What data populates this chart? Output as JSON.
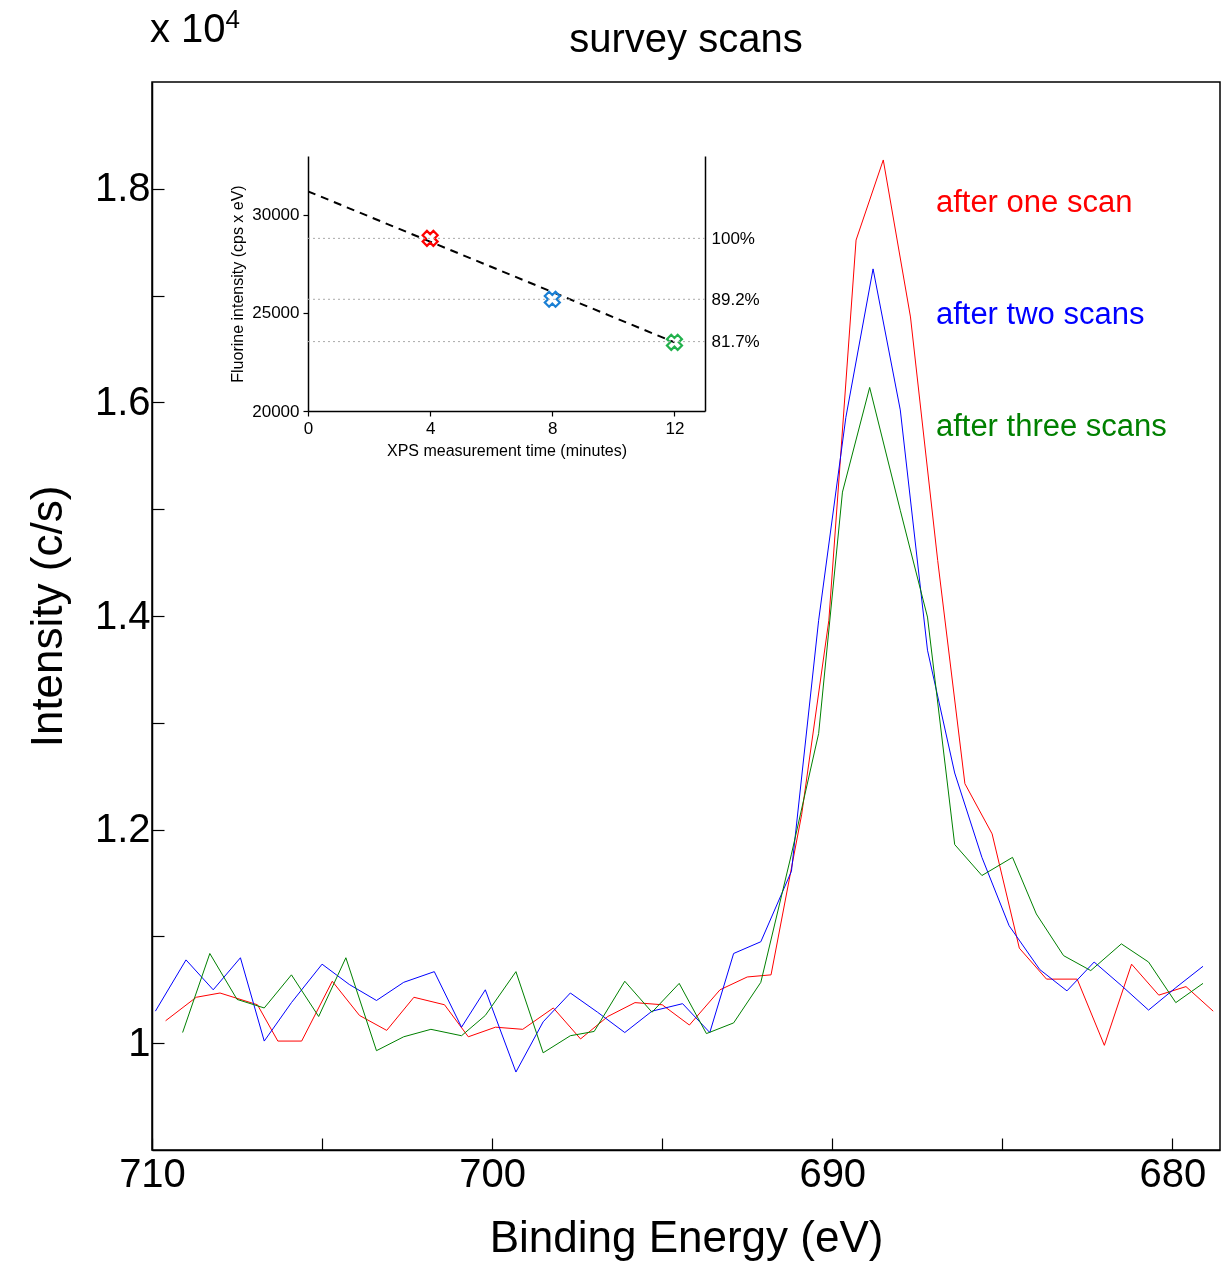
{
  "chart_data": [
    {
      "type": "line",
      "title": "survey scans",
      "xlabel": "Binding Energy (eV)",
      "ylabel": "Intensity (c/s)",
      "annotations": [
        "x 10$^{4}$"
      ],
      "legend": "top right",
      "xlim": [
        710,
        678.6
      ],
      "xticks": [
        710,
        {
          "value": 705,
          "label": null
        },
        700,
        {
          "value": 695,
          "label": null
        },
        690,
        {
          "value": 685,
          "label": null
        },
        680
      ],
      "ylim": [
        0.9,
        1.9
      ],
      "yticks": [
        1,
        {
          "value": 1.1,
          "label": null
        },
        1.2,
        {
          "value": 1.3,
          "label": null
        },
        1.4,
        {
          "value": 1.5,
          "label": null
        },
        1.6,
        {
          "value": 1.7,
          "label": null
        },
        1.8
      ],
      "series": [
        {
          "name": "after one scan",
          "color": "#ff0000",
          "x": [
            709.6,
            708.7,
            708.0,
            706.9,
            706.3,
            705.6,
            704.7,
            703.9,
            703.1,
            702.3,
            701.4,
            700.7,
            699.9,
            699.1,
            698.2,
            697.4,
            696.6,
            695.8,
            695.0,
            694.2,
            693.3,
            692.5,
            691.8,
            690.9,
            690.1,
            689.3,
            688.5,
            687.7,
            686.9,
            686.1,
            685.3,
            684.5,
            683.7,
            682.8,
            682.0,
            681.2,
            680.4,
            679.6,
            678.8
          ],
          "values": [
            1.021,
            1.043,
            1.047,
            1.036,
            1.002,
            1.002,
            1.058,
            1.026,
            1.012,
            1.043,
            1.036,
            1.006,
            1.015,
            1.013,
            1.033,
            1.004,
            1.025,
            1.038,
            1.036,
            1.017,
            1.05,
            1.062,
            1.064,
            1.214,
            1.396,
            1.752,
            1.827,
            1.68,
            1.452,
            1.243,
            1.196,
            1.089,
            1.06,
            1.06,
            0.998,
            1.074,
            1.045,
            1.053,
            1.03
          ]
        },
        {
          "name": "after two scans",
          "color": "#0000ff",
          "x": [
            709.9,
            709.0,
            708.2,
            707.4,
            706.7,
            705.9,
            705.0,
            704.2,
            703.4,
            702.6,
            701.7,
            700.9,
            700.2,
            699.3,
            698.5,
            697.7,
            696.9,
            696.1,
            695.3,
            694.4,
            693.6,
            692.9,
            692.1,
            691.2,
            690.4,
            689.6,
            688.8,
            688.0,
            687.2,
            686.4,
            685.6,
            684.8,
            683.9,
            683.1,
            682.3,
            681.5,
            680.7,
            679.9,
            679.1
          ],
          "values": [
            1.03,
            1.078,
            1.05,
            1.08,
            1.002,
            1.038,
            1.074,
            1.055,
            1.04,
            1.057,
            1.067,
            1.015,
            1.05,
            0.973,
            1.02,
            1.047,
            1.029,
            1.01,
            1.03,
            1.037,
            1.01,
            1.084,
            1.095,
            1.161,
            1.396,
            1.586,
            1.725,
            1.593,
            1.368,
            1.253,
            1.174,
            1.11,
            1.069,
            1.049,
            1.076,
            1.054,
            1.031,
            1.052,
            1.072
          ]
        },
        {
          "name": "after three scans",
          "color": "#008000",
          "x": [
            709.1,
            708.3,
            707.5,
            706.7,
            705.9,
            705.1,
            704.3,
            703.4,
            702.6,
            701.8,
            700.9,
            700.2,
            699.3,
            698.5,
            697.7,
            697.0,
            696.1,
            695.3,
            694.5,
            693.7,
            692.9,
            692.1,
            691.2,
            690.4,
            689.7,
            688.9,
            688.0,
            687.2,
            686.4,
            685.6,
            684.7,
            684.0,
            683.2,
            682.4,
            681.5,
            680.7,
            679.9,
            679.1
          ],
          "values": [
            1.01,
            1.084,
            1.041,
            1.033,
            1.064,
            1.025,
            1.08,
            0.993,
            1.006,
            1.013,
            1.007,
            1.026,
            1.067,
            0.991,
            1.007,
            1.011,
            1.058,
            1.029,
            1.056,
            1.009,
            1.019,
            1.057,
            1.177,
            1.29,
            1.516,
            1.614,
            1.499,
            1.399,
            1.186,
            1.157,
            1.174,
            1.121,
            1.082,
            1.068,
            1.093,
            1.076,
            1.038,
            1.056
          ]
        }
      ]
    },
    {
      "type": "scatter",
      "xlabel": "XPS measurement time (minutes)",
      "ylabel": "Fluorine intensity (cps x eV)",
      "xlim": [
        0,
        13
      ],
      "xticks": [
        0,
        4,
        8,
        12
      ],
      "ylim": [
        20000,
        33000
      ],
      "yticks": [
        20000,
        25000,
        30000
      ],
      "y2lim": [
        69.4,
        114.6
      ],
      "y2ticks": [
        {
          "value": 100,
          "label": "100%"
        },
        {
          "value": 89.2,
          "label": "89.2%"
        },
        {
          "value": 81.7,
          "label": "81.7%"
        }
      ],
      "ref_lines": [
        {
          "axis": "y2",
          "value": 100,
          "color": "#aaaaaa",
          "line_style": "dotted"
        },
        {
          "axis": "y2",
          "value": 89.2,
          "color": "#aaaaaa",
          "line_style": "dotted"
        },
        {
          "axis": "y2",
          "value": 81.7,
          "color": "#aaaaaa",
          "line_style": "dotted"
        }
      ],
      "series": [
        {
          "type": "line",
          "color": "#000000",
          "line_style": "dashed",
          "x": [
            0,
            12
          ],
          "values": [
            31200,
            23500
          ]
        },
        {
          "color": "#ff0000",
          "marker": "cross",
          "x": [
            4
          ],
          "values": [
            28800
          ]
        },
        {
          "color": "#1a7fd4",
          "marker": "cross",
          "x": [
            8
          ],
          "values": [
            25700
          ]
        },
        {
          "color": "#22b14c",
          "marker": "cross",
          "x": [
            12
          ],
          "values": [
            23500
          ]
        }
      ]
    }
  ]
}
